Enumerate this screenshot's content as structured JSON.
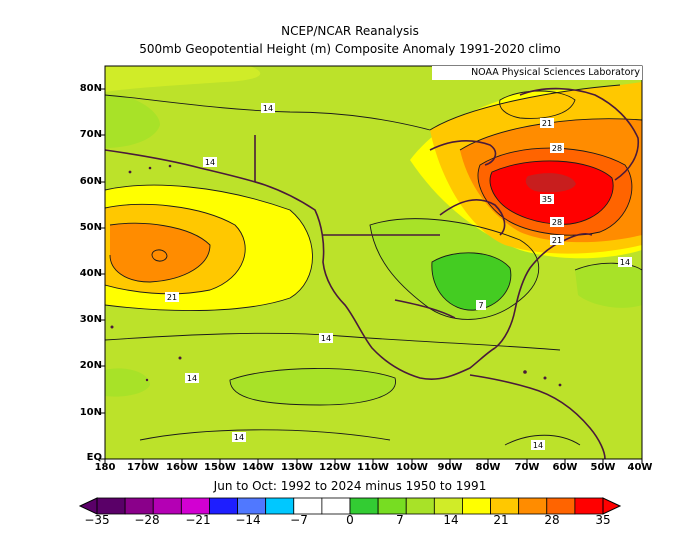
{
  "title_line1": "NCEP/NCAR Reanalysis",
  "title_line2": "500mb Geopotential Height (m) Composite Anomaly 1991-2020 climo",
  "credit": "NOAA Physical Sciences Laboratory",
  "caption": "Jun to Oct: 1992 to 2024 minus 1950 to 1991",
  "lat_labels": [
    "80N",
    "70N",
    "60N",
    "50N",
    "40N",
    "30N",
    "20N",
    "10N",
    "EQ"
  ],
  "lon_labels": [
    "180",
    "170W",
    "160W",
    "150W",
    "140W",
    "130W",
    "120W",
    "110W",
    "100W",
    "90W",
    "80W",
    "70W",
    "60W",
    "50W",
    "40W"
  ],
  "contour_labels": [
    "14",
    "14",
    "21",
    "28",
    "35",
    "28",
    "21",
    "14",
    "21",
    "7",
    "14",
    "14",
    "14",
    "14"
  ],
  "colorbar_labels": [
    "−35",
    "−28",
    "−21",
    "−14",
    "−7",
    "0",
    "7",
    "14",
    "21",
    "28",
    "35"
  ],
  "colorbar_colors": [
    "#5a0068",
    "#8a008a",
    "#b400b4",
    "#d200d2",
    "#1e1eff",
    "#5078ff",
    "#00c8ff",
    "#ffffff",
    "#ffffff",
    "#33cc33",
    "#77dd22",
    "#a8e228",
    "#d0ec28",
    "#ffff00",
    "#ffc800",
    "#ff8c00",
    "#ff6400",
    "#ff0000"
  ],
  "map_colors": {
    "base": "#bce22a",
    "green": "#77dd22",
    "yellow": "#ffff00",
    "orange": "#ffc800",
    "dark_orange": "#ff8c00",
    "red_orange": "#ff6400",
    "red": "#ff0000",
    "dark_red": "#c81e1e",
    "coast": "#4a1a3a"
  }
}
